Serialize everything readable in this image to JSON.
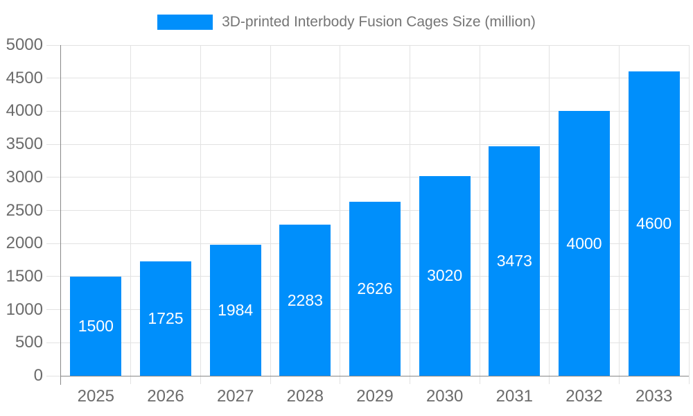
{
  "legend": {
    "label": "3D-printed Interbody Fusion Cages Size (million)"
  },
  "chart_data": {
    "type": "bar",
    "title": "3D-printed Interbody Fusion Cages Size (million)",
    "categories": [
      "2025",
      "2026",
      "2027",
      "2028",
      "2029",
      "2030",
      "2031",
      "2032",
      "2033"
    ],
    "series": [
      {
        "name": "3D-printed Interbody Fusion Cages Size (million)",
        "values": [
          1500,
          1725,
          1984,
          2283,
          2626,
          3020,
          3473,
          4000,
          4600
        ]
      }
    ],
    "xlabel": "",
    "ylabel": "",
    "ylim": [
      0,
      5000
    ],
    "ytick_step": 500,
    "ytick_labels": [
      "0",
      "500",
      "1000",
      "1500",
      "2000",
      "2500",
      "3000",
      "3500",
      "4000",
      "4500",
      "5000"
    ],
    "grid": true,
    "legend_position": "top-center",
    "value_label_position": "inside-center",
    "colors": {
      "bar": "#008FFB",
      "grid": "#e2e2e2",
      "axis": "#878787",
      "tick_text": "#6b6b6b",
      "title_text": "#757575",
      "value_label": "#ffffff",
      "background": "#ffffff"
    }
  }
}
